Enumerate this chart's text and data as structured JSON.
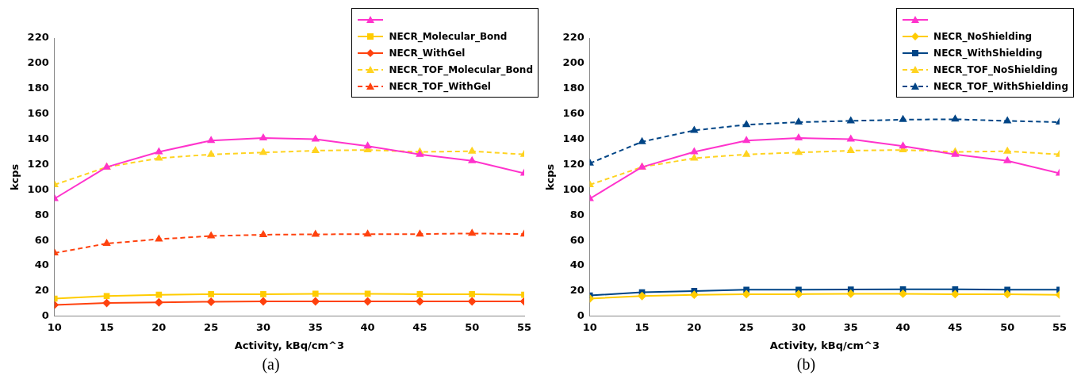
{
  "chart_data": [
    {
      "type": "line",
      "xlabel": "Activity, kBq/cm^3",
      "ylabel": "kcps",
      "x": [
        10,
        15,
        20,
        25,
        30,
        35,
        40,
        45,
        50,
        55
      ],
      "xlim": [
        10,
        55
      ],
      "xticks": [
        10,
        15,
        20,
        25,
        30,
        35,
        40,
        45,
        50,
        55
      ],
      "ylim": [
        0,
        220
      ],
      "yticks": [
        0,
        20,
        40,
        60,
        80,
        100,
        120,
        140,
        160,
        180,
        200,
        220
      ],
      "legend": "top right",
      "annotations": [
        "(a)"
      ],
      "series": [
        {
          "color": "#ff33cc",
          "marker": "triangle",
          "line_style": "solid",
          "values": [
            93,
            118,
            130,
            139,
            141,
            140,
            134.5,
            128,
            123,
            113
          ]
        },
        {
          "name": "NECR_Molecular_Bond",
          "color": "#ffcc00",
          "marker": "square",
          "line_style": "solid",
          "values": [
            14,
            16,
            17,
            17.5,
            17.5,
            17.8,
            17.8,
            17.5,
            17.5,
            17
          ]
        },
        {
          "name": "NECR_WithGel",
          "color": "#ff420e",
          "marker": "diamond",
          "line_style": "solid",
          "values": [
            9,
            10.5,
            11,
            11.5,
            11.8,
            11.8,
            11.8,
            11.8,
            11.8,
            11.8
          ]
        },
        {
          "name": "NECR_TOF_Molecular_Bond",
          "color": "#ffd320",
          "marker": "triangle",
          "line_style": "dashed",
          "values": [
            104,
            118,
            125,
            128,
            129.5,
            131,
            131.5,
            130,
            130.5,
            128
          ]
        },
        {
          "name": "NECR_TOF_WithGel",
          "color": "#ff420e",
          "marker": "triangle",
          "line_style": "dashed",
          "values": [
            50,
            57.5,
            61,
            63.5,
            64.5,
            64.8,
            65,
            65,
            65.5,
            65
          ]
        }
      ]
    },
    {
      "type": "line",
      "xlabel": "Activity, kBq/cm^3",
      "ylabel": "kcps",
      "x": [
        10,
        15,
        20,
        25,
        30,
        35,
        40,
        45,
        50,
        55
      ],
      "xlim": [
        10,
        55
      ],
      "xticks": [
        10,
        15,
        20,
        25,
        30,
        35,
        40,
        45,
        50,
        55
      ],
      "ylim": [
        0,
        220
      ],
      "yticks": [
        0,
        20,
        40,
        60,
        80,
        100,
        120,
        140,
        160,
        180,
        200,
        220
      ],
      "legend": "top right",
      "annotations": [
        "(b)"
      ],
      "series": [
        {
          "color": "#ff33cc",
          "marker": "triangle",
          "line_style": "solid",
          "values": [
            93,
            118,
            130,
            139,
            141,
            140,
            134.5,
            128,
            123,
            113
          ]
        },
        {
          "name": "NECR_NoShielding",
          "color": "#ffcc00",
          "marker": "diamond",
          "line_style": "solid",
          "values": [
            14,
            16,
            17,
            17.5,
            17.5,
            17.8,
            17.8,
            17.5,
            17.5,
            17
          ]
        },
        {
          "name": "NECR_WithShielding",
          "color": "#004586",
          "marker": "square",
          "line_style": "solid",
          "values": [
            16.5,
            19,
            20,
            21,
            21,
            21.2,
            21.3,
            21.3,
            21,
            21
          ]
        },
        {
          "name": "NECR_TOF_NoShielding",
          "color": "#ffd320",
          "marker": "triangle",
          "line_style": "dashed",
          "values": [
            104,
            118,
            125,
            128,
            129.5,
            131,
            131.5,
            130,
            130.5,
            128
          ]
        },
        {
          "name": "NECR_TOF_WithShielding",
          "color": "#004586",
          "marker": "triangle",
          "line_style": "dashed",
          "values": [
            121,
            138,
            147,
            151.5,
            153.5,
            154.5,
            155.5,
            155.8,
            154.5,
            153.5
          ]
        }
      ]
    }
  ]
}
